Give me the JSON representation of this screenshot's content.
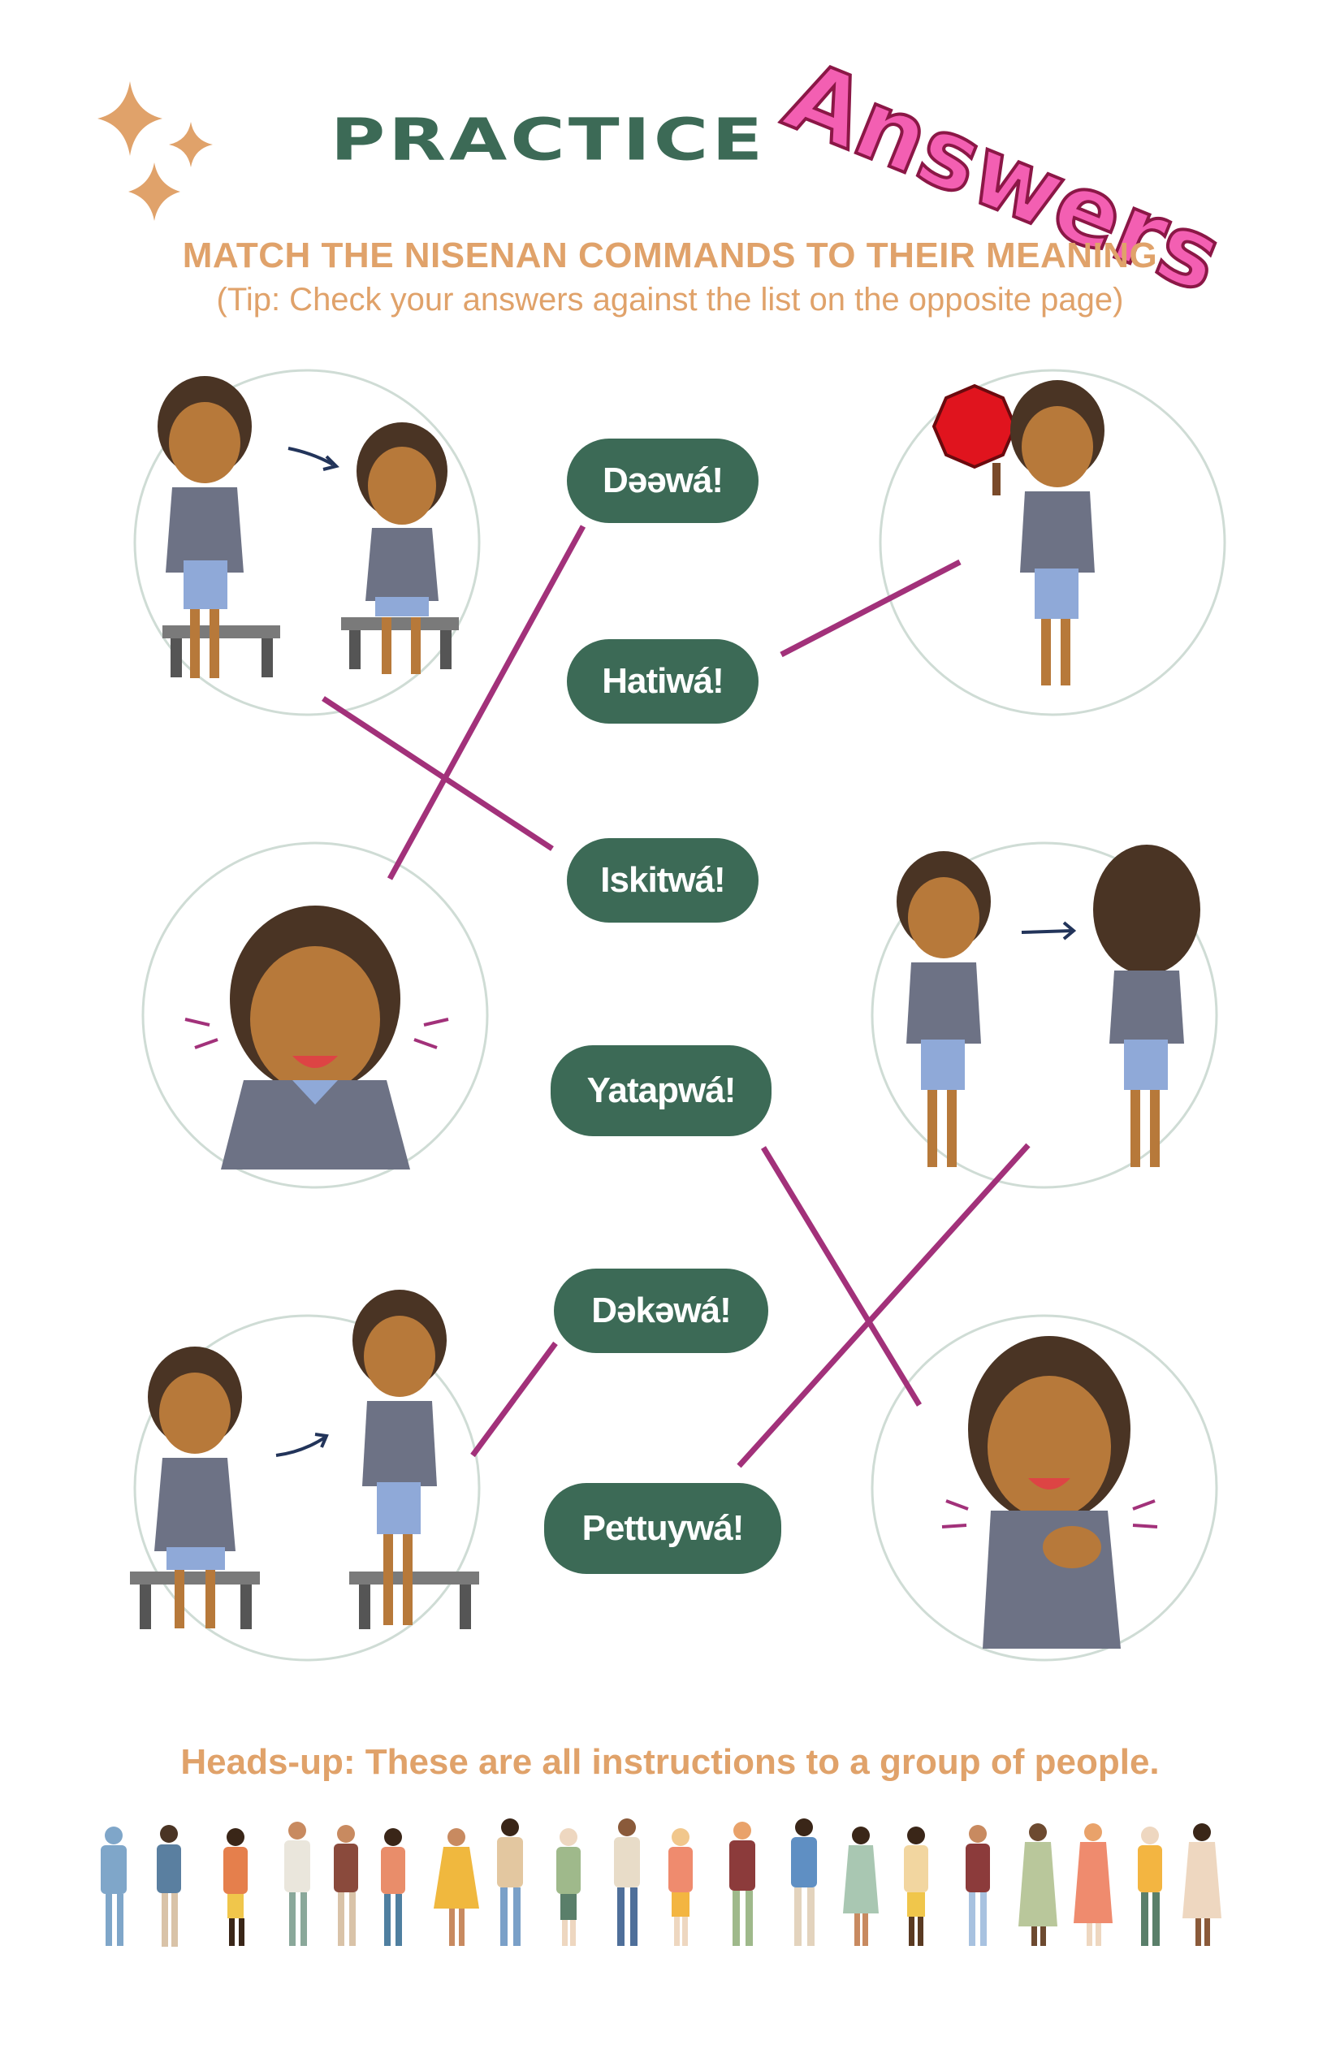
{
  "header": {
    "title": "PRACTICE",
    "answers_stamp": "Answers",
    "instruction": "MATCH THE NISENAN COMMANDS TO THEIR MEANING",
    "tip": "(Tip: Check your answers against the list on the opposite page)"
  },
  "commands": [
    "Dəəwá!",
    "Hatiwá!",
    "Iskitwá!",
    "Yatapwá!",
    "Dəkəwá!",
    "Pettuywá!"
  ],
  "footer": {
    "headsup": "Heads-up: These are all instructions to a group of people."
  },
  "colors": {
    "green": "#3c6a56",
    "orange": "#e0a26a",
    "pink": "#f35fb2",
    "match_line": "#a2317a",
    "circle": "#cfdcd5"
  }
}
